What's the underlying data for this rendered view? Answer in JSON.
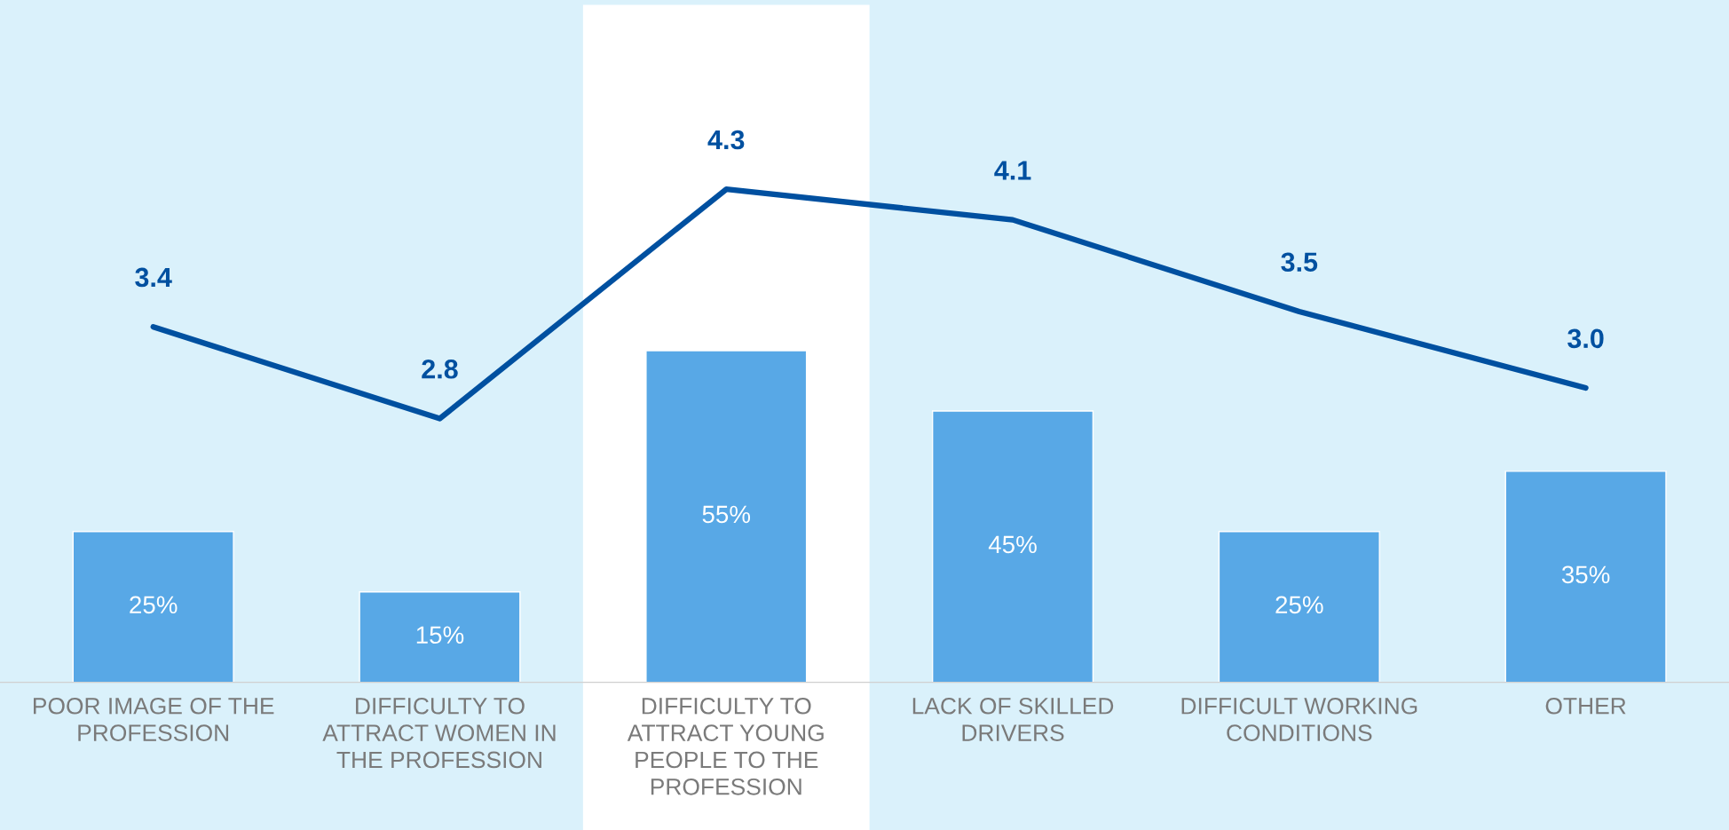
{
  "chart_data": {
    "type": "bar",
    "categories": [
      "POOR IMAGE OF THE\nPROFESSION",
      "DIFFICULTY TO\nATTRACT WOMEN IN\nTHE PROFESSION",
      "DIFFICULTY TO\nATTRACT YOUNG\nPEOPLE TO THE\nPROFESSION",
      "LACK OF SKILLED\nDRIVERS",
      "DIFFICULT WORKING\nCONDITIONS",
      "OTHER"
    ],
    "series": [
      {
        "color": "#58a8e6",
        "values": [
          25,
          15,
          55,
          45,
          25,
          35
        ],
        "value_labels": [
          "25%",
          "15%",
          "55%",
          "45%",
          "25%",
          "35%"
        ]
      },
      {
        "type": "line",
        "axis": "y2",
        "color": "#0050a0",
        "values": [
          3.4,
          2.8,
          4.3,
          4.1,
          3.5,
          3.0
        ],
        "value_labels": [
          "3.4",
          "2.8",
          "4.3",
          "4.1",
          "3.5",
          "3.0"
        ]
      }
    ],
    "bands": [
      {
        "axis": "x",
        "from": "DIFFICULTY TO\nATTRACT YOUNG\nPEOPLE TO THE\nPROFESSION",
        "to": "DIFFICULTY TO\nATTRACT YOUNG\nPEOPLE TO THE\nPROFESSION",
        "color": "#ffffff"
      }
    ],
    "tick_labels": "x",
    "grid": false,
    "legend": false,
    "marker": "none",
    "line_style": "solid"
  }
}
